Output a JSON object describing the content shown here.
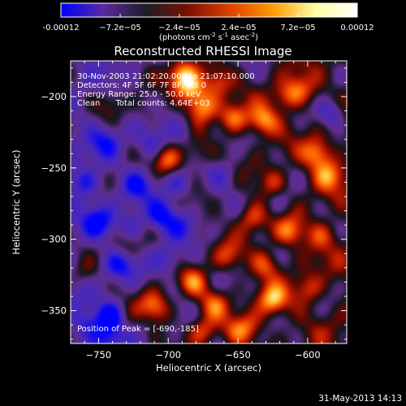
{
  "colorbar": {
    "ticks": [
      "-0.00012",
      "−7.2e−05",
      "−2.4e−05",
      "2.4e−05",
      "7.2e−05",
      "0.00012"
    ],
    "tick_values": [
      -0.00012,
      -7.2e-05,
      -2.4e-05,
      2.4e-05,
      7.2e-05,
      0.00012
    ],
    "range": [
      -0.00012,
      0.00012
    ],
    "units_parts": [
      "(photons cm",
      "-2",
      " s",
      "-1",
      " asec",
      "-2",
      ")"
    ],
    "colors": [
      "#0000ff",
      "#5a2aa0",
      "#1e1e28",
      "#7a1000",
      "#e04000",
      "#ff9a00",
      "#ffffa0",
      "#ffffff"
    ]
  },
  "chart_data": {
    "type": "heatmap",
    "title": "Reconstructed RHESSI Image",
    "xlabel": "Heliocentric X (arcsec)",
    "ylabel": "Heliocentric Y (arcsec)",
    "xlim": [
      -770,
      -572
    ],
    "ylim": [
      -373,
      -175
    ],
    "xticks": [
      -750,
      -700,
      -650,
      -600
    ],
    "yticks": [
      -200,
      -250,
      -300,
      -350
    ],
    "xtick_labels": [
      "−750",
      "−700",
      "−650",
      "−600"
    ],
    "ytick_labels": [
      "−200",
      "−250",
      "−300",
      "−350"
    ],
    "info_lines": [
      "30-Nov-2003 21:02:20.000 to 21:07:10.000",
      "Detectors: 4F 5F 6F 7F 8F, Att 0",
      "Energy Range: 25.0 - 50.0 keV",
      "Clean      Total counts: 4.64E+03"
    ],
    "peak_label": "Position of Peak = [-690,-185]",
    "peak": [
      -690,
      -185
    ],
    "hot_spots": [
      {
        "x": -690,
        "y": -185,
        "v": 1.0
      },
      {
        "x": -683,
        "y": -195,
        "v": 0.85
      },
      {
        "x": -675,
        "y": -207,
        "v": 0.8
      },
      {
        "x": -665,
        "y": -190,
        "v": 0.65
      },
      {
        "x": -653,
        "y": -215,
        "v": 0.75
      },
      {
        "x": -632,
        "y": -217,
        "v": 0.85
      },
      {
        "x": -615,
        "y": -200,
        "v": 0.55
      },
      {
        "x": -605,
        "y": -195,
        "v": 0.45
      },
      {
        "x": -700,
        "y": -245,
        "v": 0.75
      },
      {
        "x": -680,
        "y": -240,
        "v": 0.4
      },
      {
        "x": -625,
        "y": -260,
        "v": 0.5
      },
      {
        "x": -593,
        "y": -240,
        "v": 0.7
      },
      {
        "x": -585,
        "y": -255,
        "v": 0.6
      },
      {
        "x": -640,
        "y": -285,
        "v": 0.6
      },
      {
        "x": -613,
        "y": -295,
        "v": 0.65
      },
      {
        "x": -590,
        "y": -297,
        "v": 0.45
      },
      {
        "x": -657,
        "y": -312,
        "v": 0.5
      },
      {
        "x": -630,
        "y": -318,
        "v": 0.55
      },
      {
        "x": -625,
        "y": -343,
        "v": 0.85
      },
      {
        "x": -600,
        "y": -335,
        "v": 0.5
      },
      {
        "x": -682,
        "y": -330,
        "v": 0.7
      },
      {
        "x": -667,
        "y": -345,
        "v": 0.65
      },
      {
        "x": -675,
        "y": -365,
        "v": 0.55
      },
      {
        "x": -706,
        "y": -350,
        "v": 0.45
      },
      {
        "x": -712,
        "y": -345,
        "v": 0.6
      },
      {
        "x": -733,
        "y": -357,
        "v": 0.45
      },
      {
        "x": -730,
        "y": -305,
        "v": 0.35
      },
      {
        "x": -650,
        "y": -365,
        "v": 0.5
      },
      {
        "x": -640,
        "y": -360,
        "v": 0.4
      },
      {
        "x": -760,
        "y": -325,
        "v": 0.3
      },
      {
        "x": -740,
        "y": -205,
        "v": 0.3
      },
      {
        "x": -715,
        "y": -210,
        "v": 0.3
      }
    ],
    "cold_spots": [
      {
        "x": -740,
        "y": -355,
        "v": -1.0
      },
      {
        "x": -705,
        "y": -283,
        "v": -0.75
      },
      {
        "x": -750,
        "y": -288,
        "v": -0.6
      },
      {
        "x": -735,
        "y": -318,
        "v": -0.55
      },
      {
        "x": -760,
        "y": -260,
        "v": -0.55
      },
      {
        "x": -713,
        "y": -233,
        "v": -0.5
      },
      {
        "x": -722,
        "y": -262,
        "v": -0.5
      },
      {
        "x": -693,
        "y": -262,
        "v": -0.45
      },
      {
        "x": -660,
        "y": -255,
        "v": -0.45
      },
      {
        "x": -583,
        "y": -212,
        "v": -0.7
      },
      {
        "x": -700,
        "y": -315,
        "v": -0.45
      },
      {
        "x": -745,
        "y": -232,
        "v": -0.45
      },
      {
        "x": -727,
        "y": -290,
        "v": -0.45
      },
      {
        "x": -690,
        "y": -290,
        "v": -0.4
      },
      {
        "x": -760,
        "y": -360,
        "v": -0.5
      },
      {
        "x": -620,
        "y": -275,
        "v": -0.3
      },
      {
        "x": -690,
        "y": -223,
        "v": -0.3
      },
      {
        "x": -745,
        "y": -370,
        "v": -0.45
      }
    ]
  },
  "footer": {
    "timestamp": "31-May-2013 14:13"
  }
}
